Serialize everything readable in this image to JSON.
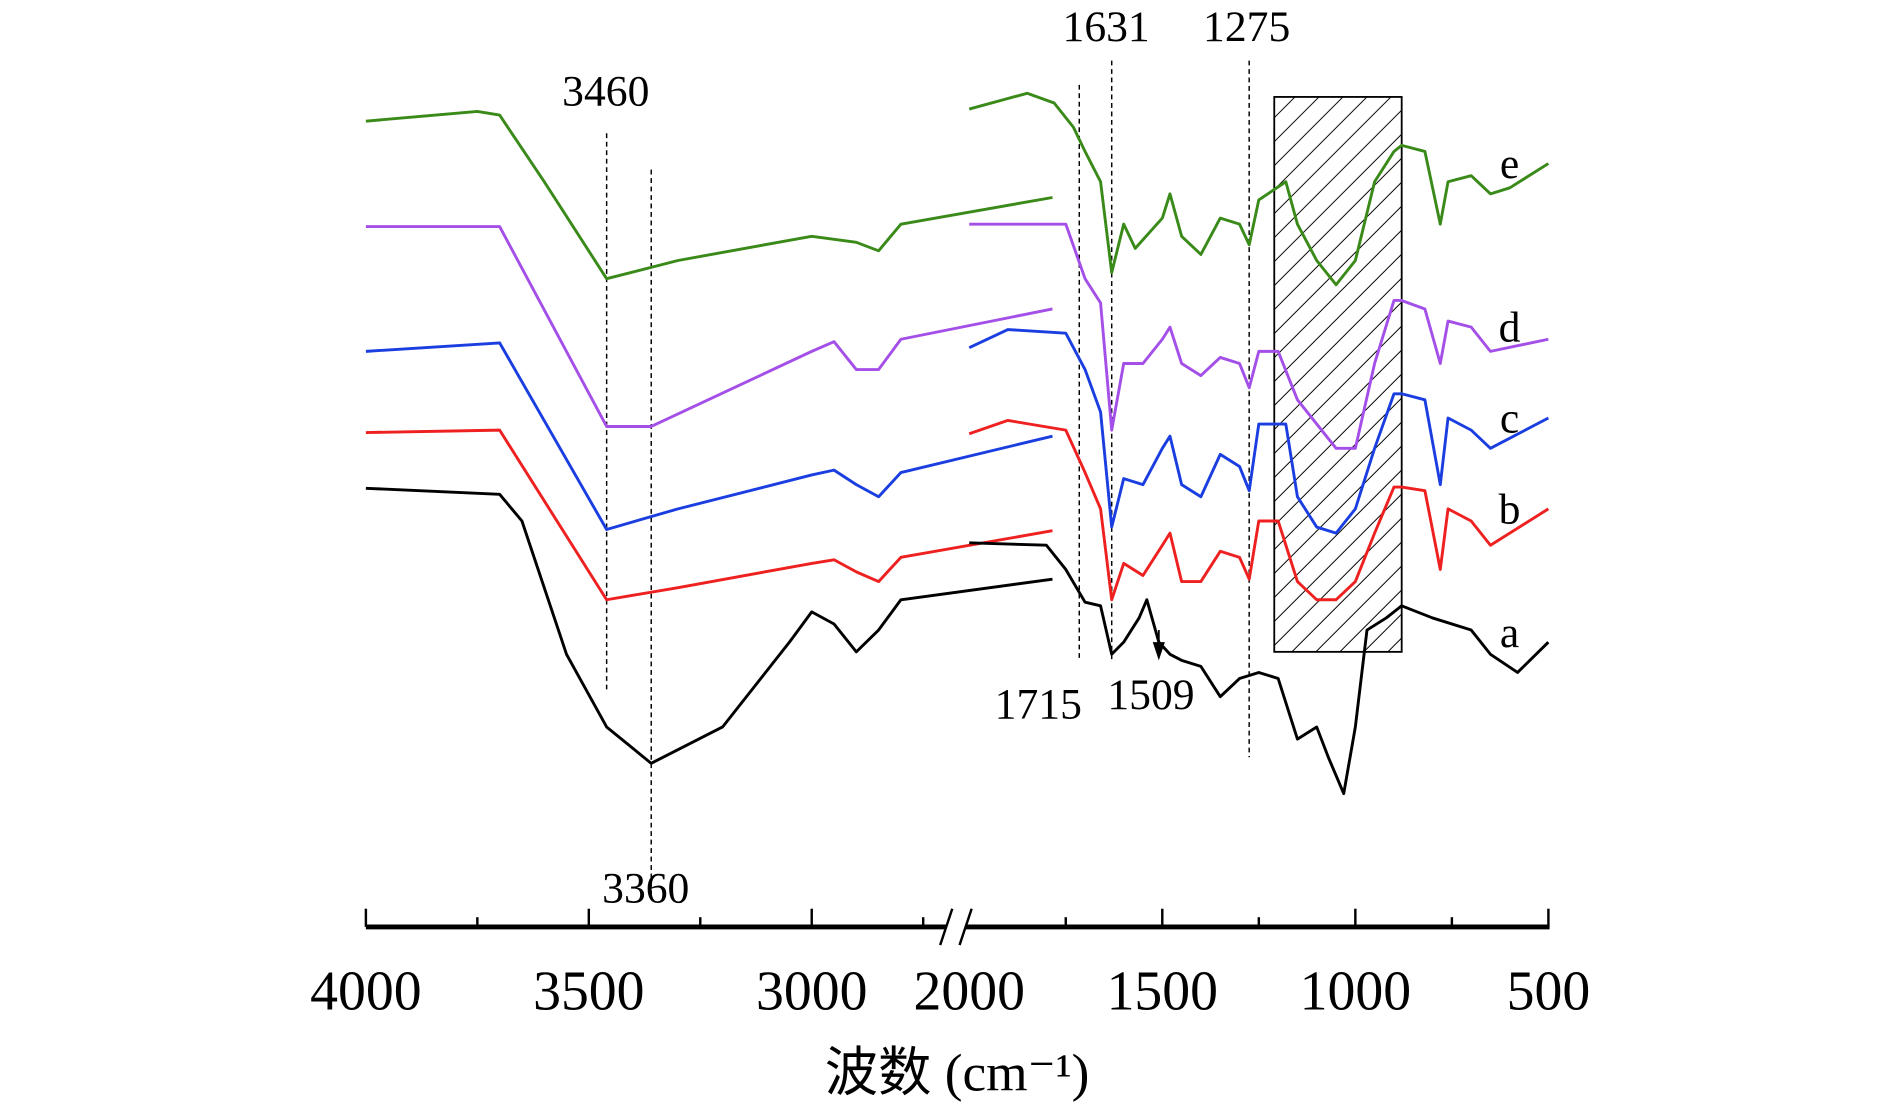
{
  "chart_data": {
    "type": "line",
    "title": "",
    "xlabel": "波数 (cm⁻¹)",
    "ylabel": "",
    "xlim_left": [
      4000,
      2450
    ],
    "xlim_right": [
      2000,
      500
    ],
    "ylim": [
      0,
      70
    ],
    "x_ticks": [
      "4000",
      "3500",
      "3000",
      "2000",
      "1500",
      "1000",
      "500"
    ],
    "annotations": [
      {
        "label": "3460",
        "x": 3460
      },
      {
        "label": "3360",
        "x": 3360
      },
      {
        "label": "1631",
        "x": 1631
      },
      {
        "label": "1275",
        "x": 1275
      },
      {
        "label": "1715",
        "x": 1715
      },
      {
        "label": "1509",
        "x": 1509
      }
    ],
    "hatched_region": [
      1210,
      880
    ],
    "series": [
      {
        "name": "e",
        "color": "#3a8a1a",
        "left": [
          [
            4000,
            60
          ],
          [
            3750,
            60.8
          ],
          [
            3700,
            60.5
          ],
          [
            3600,
            55
          ],
          [
            3460,
            47
          ],
          [
            3300,
            48.5
          ],
          [
            3000,
            50.5
          ],
          [
            2900,
            50
          ],
          [
            2850,
            49.3
          ],
          [
            2800,
            51.5
          ],
          [
            2460,
            53.7
          ]
        ],
        "right": [
          [
            2000,
            61
          ],
          [
            1850,
            62.3
          ],
          [
            1780,
            61.5
          ],
          [
            1730,
            59.5
          ],
          [
            1700,
            57.5
          ],
          [
            1660,
            55
          ],
          [
            1631,
            47.5
          ],
          [
            1600,
            51.5
          ],
          [
            1570,
            49.5
          ],
          [
            1500,
            52
          ],
          [
            1480,
            54
          ],
          [
            1450,
            50.5
          ],
          [
            1400,
            49
          ],
          [
            1350,
            52
          ],
          [
            1300,
            51.5
          ],
          [
            1275,
            49.8
          ],
          [
            1250,
            53.5
          ],
          [
            1180,
            55
          ],
          [
            1150,
            51.5
          ],
          [
            1100,
            48.5
          ],
          [
            1050,
            46.5
          ],
          [
            1000,
            48.5
          ],
          [
            950,
            55
          ],
          [
            900,
            57.5
          ],
          [
            880,
            58
          ],
          [
            820,
            57.5
          ],
          [
            780,
            51.5
          ],
          [
            760,
            55
          ],
          [
            700,
            55.5
          ],
          [
            650,
            54
          ],
          [
            600,
            54.5
          ],
          [
            500,
            56.5
          ]
        ]
      },
      {
        "name": "d",
        "color": "#a450e8",
        "left": [
          [
            4000,
            51.3
          ],
          [
            3700,
            51.3
          ],
          [
            3460,
            34.8
          ],
          [
            3360,
            34.8
          ],
          [
            3000,
            41
          ],
          [
            2950,
            41.8
          ],
          [
            2900,
            39.5
          ],
          [
            2850,
            39.5
          ],
          [
            2800,
            42
          ],
          [
            2460,
            44.5
          ]
        ],
        "right": [
          [
            2000,
            51.5
          ],
          [
            1750,
            51.5
          ],
          [
            1700,
            47
          ],
          [
            1660,
            45
          ],
          [
            1631,
            34.5
          ],
          [
            1600,
            40
          ],
          [
            1550,
            40
          ],
          [
            1500,
            42
          ],
          [
            1480,
            43
          ],
          [
            1450,
            40
          ],
          [
            1400,
            39
          ],
          [
            1350,
            40.5
          ],
          [
            1300,
            40
          ],
          [
            1275,
            38
          ],
          [
            1250,
            41
          ],
          [
            1200,
            41
          ],
          [
            1150,
            37
          ],
          [
            1050,
            33
          ],
          [
            1000,
            33
          ],
          [
            950,
            40
          ],
          [
            900,
            45.2
          ],
          [
            880,
            45.2
          ],
          [
            820,
            44.5
          ],
          [
            780,
            40
          ],
          [
            760,
            43.5
          ],
          [
            700,
            43
          ],
          [
            650,
            41
          ],
          [
            500,
            42
          ]
        ]
      },
      {
        "name": "c",
        "color": "#1a3ee0",
        "left": [
          [
            4000,
            41
          ],
          [
            3700,
            41.7
          ],
          [
            3460,
            26.3
          ],
          [
            3300,
            28
          ],
          [
            3000,
            30.8
          ],
          [
            2950,
            31.2
          ],
          [
            2900,
            30
          ],
          [
            2850,
            29
          ],
          [
            2800,
            31
          ],
          [
            2460,
            34
          ]
        ],
        "right": [
          [
            2000,
            41.3
          ],
          [
            1900,
            42.8
          ],
          [
            1750,
            42.5
          ],
          [
            1700,
            39.5
          ],
          [
            1660,
            36
          ],
          [
            1631,
            26.5
          ],
          [
            1600,
            30.5
          ],
          [
            1550,
            30
          ],
          [
            1500,
            33
          ],
          [
            1480,
            34
          ],
          [
            1450,
            30
          ],
          [
            1400,
            29
          ],
          [
            1350,
            32.5
          ],
          [
            1300,
            31.5
          ],
          [
            1275,
            29.5
          ],
          [
            1250,
            35
          ],
          [
            1180,
            35
          ],
          [
            1150,
            29
          ],
          [
            1100,
            26.5
          ],
          [
            1050,
            26
          ],
          [
            1000,
            28
          ],
          [
            950,
            33
          ],
          [
            900,
            37.5
          ],
          [
            880,
            37.5
          ],
          [
            820,
            37
          ],
          [
            780,
            30
          ],
          [
            760,
            35.5
          ],
          [
            700,
            34.5
          ],
          [
            650,
            33
          ],
          [
            500,
            35.5
          ]
        ]
      },
      {
        "name": "b",
        "color": "#ee2020",
        "left": [
          [
            4000,
            34.3
          ],
          [
            3700,
            34.5
          ],
          [
            3460,
            20.5
          ],
          [
            3300,
            21.5
          ],
          [
            3000,
            23.5
          ],
          [
            2950,
            23.8
          ],
          [
            2900,
            22.8
          ],
          [
            2850,
            22
          ],
          [
            2800,
            24
          ],
          [
            2460,
            26.2
          ]
        ],
        "right": [
          [
            2000,
            34.2
          ],
          [
            1900,
            35.3
          ],
          [
            1750,
            34.5
          ],
          [
            1700,
            31
          ],
          [
            1660,
            28
          ],
          [
            1631,
            20.5
          ],
          [
            1600,
            23.5
          ],
          [
            1550,
            22.5
          ],
          [
            1500,
            25
          ],
          [
            1480,
            26
          ],
          [
            1450,
            22
          ],
          [
            1400,
            22
          ],
          [
            1350,
            24.5
          ],
          [
            1300,
            24
          ],
          [
            1275,
            22.2
          ],
          [
            1250,
            27
          ],
          [
            1200,
            27
          ],
          [
            1150,
            22
          ],
          [
            1100,
            20.5
          ],
          [
            1050,
            20.5
          ],
          [
            1000,
            22
          ],
          [
            950,
            26
          ],
          [
            900,
            29.8
          ],
          [
            880,
            29.8
          ],
          [
            820,
            29.5
          ],
          [
            780,
            23
          ],
          [
            760,
            28
          ],
          [
            700,
            27
          ],
          [
            650,
            25
          ],
          [
            500,
            28
          ]
        ]
      },
      {
        "name": "a",
        "color": "#000000",
        "left": [
          [
            4000,
            29.7
          ],
          [
            3700,
            29.2
          ],
          [
            3650,
            27
          ],
          [
            3550,
            16
          ],
          [
            3460,
            10
          ],
          [
            3360,
            7
          ],
          [
            3200,
            10
          ],
          [
            3050,
            17
          ],
          [
            3000,
            19.5
          ],
          [
            2950,
            18.5
          ],
          [
            2900,
            16.2
          ],
          [
            2850,
            18
          ],
          [
            2800,
            20.5
          ],
          [
            2460,
            22.2
          ]
        ],
        "right": [
          [
            2000,
            25.2
          ],
          [
            1800,
            25
          ],
          [
            1750,
            23
          ],
          [
            1700,
            20.3
          ],
          [
            1660,
            20
          ],
          [
            1631,
            16
          ],
          [
            1600,
            17
          ],
          [
            1560,
            19
          ],
          [
            1540,
            20.5
          ],
          [
            1509,
            17
          ],
          [
            1480,
            16
          ],
          [
            1450,
            15.5
          ],
          [
            1400,
            15
          ],
          [
            1350,
            12.5
          ],
          [
            1300,
            14
          ],
          [
            1250,
            14.5
          ],
          [
            1200,
            14
          ],
          [
            1150,
            9
          ],
          [
            1100,
            10
          ],
          [
            1070,
            7.5
          ],
          [
            1030,
            4.5
          ],
          [
            1000,
            10
          ],
          [
            970,
            18
          ],
          [
            920,
            19
          ],
          [
            880,
            20
          ],
          [
            800,
            19
          ],
          [
            700,
            18
          ],
          [
            650,
            16
          ],
          [
            580,
            14.5
          ],
          [
            500,
            17
          ]
        ]
      }
    ]
  }
}
